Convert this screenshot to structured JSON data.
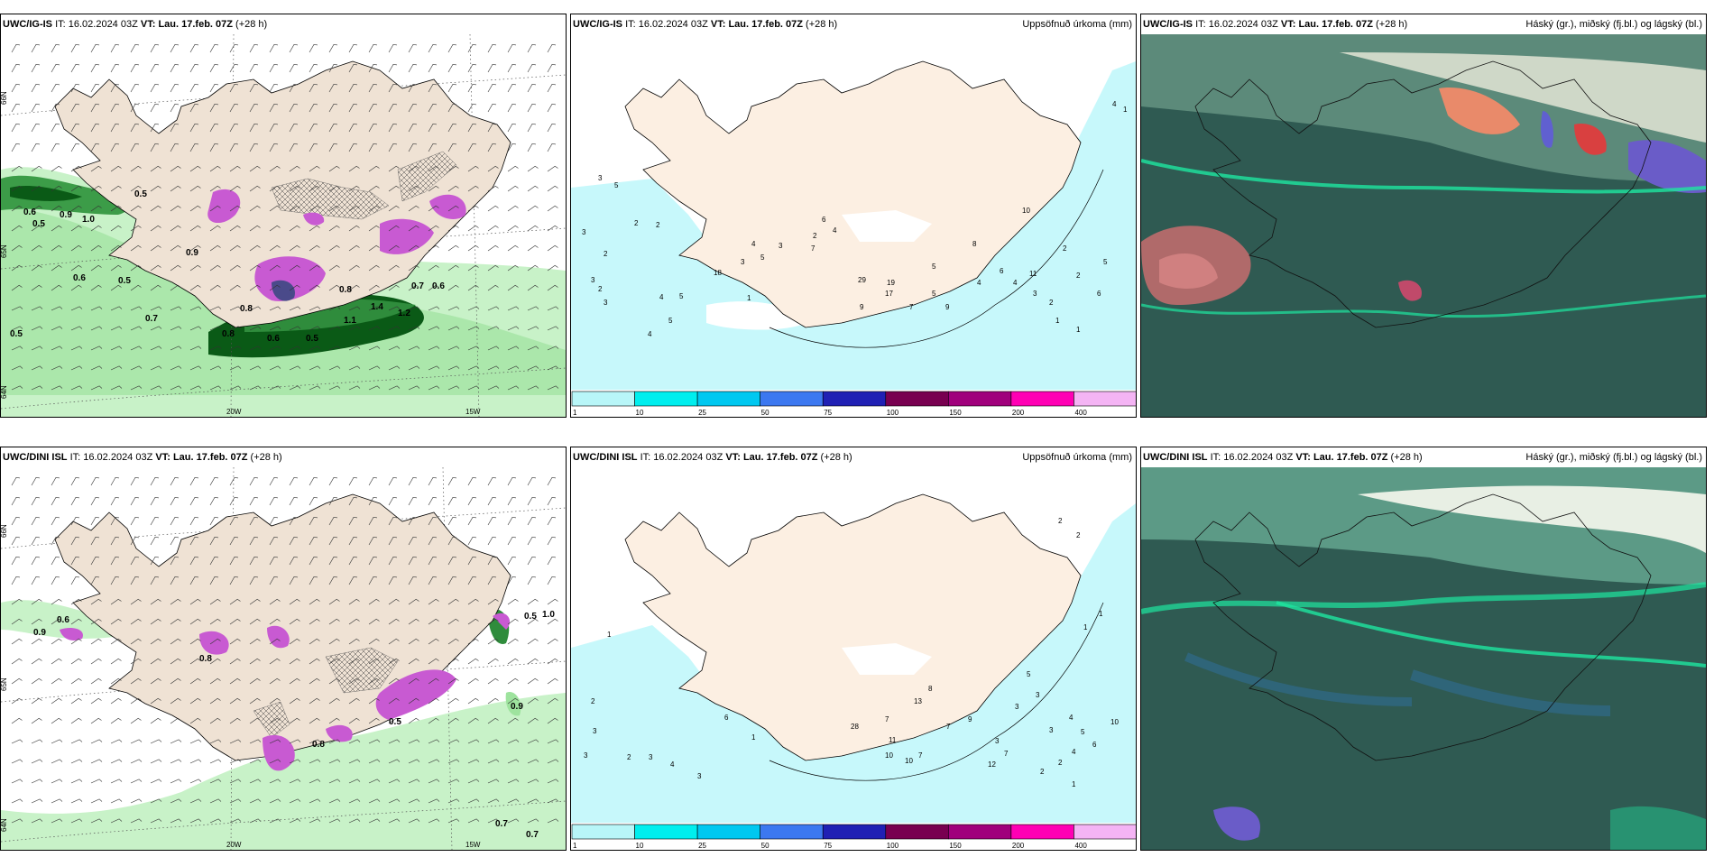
{
  "row1": {
    "p1": {
      "model": "UWC/IG-IS",
      "it_label": "IT:",
      "it": "16.02.2024 03Z",
      "vt_label": "VT:",
      "vt": "Lau. 17.feb. 07Z",
      "lead": "(+28 h)",
      "right": ""
    },
    "p2": {
      "model": "UWC/IG-IS",
      "it_label": "IT:",
      "it": "16.02.2024 03Z",
      "vt_label": "VT:",
      "vt": "Lau. 17.feb. 07Z",
      "lead": "(+28 h)",
      "right": "Uppsöfnuð úrkoma (mm)"
    },
    "p3": {
      "model": "UWC/IG-IS",
      "it_label": "IT:",
      "it": "16.02.2024 03Z",
      "vt_label": "VT:",
      "vt": "Lau. 17.feb. 07Z",
      "lead": "(+28 h)",
      "right": "Háský (gr.), miðský (fj.bl.) og lágský (bl.)"
    }
  },
  "row2": {
    "p1": {
      "model": "UWC/DINI ISL",
      "it_label": "IT:",
      "it": "16.02.2024 03Z",
      "vt_label": "VT:",
      "vt": "Lau. 17.feb. 07Z",
      "lead": "(+28 h)",
      "right": ""
    },
    "p2": {
      "model": "UWC/DINI ISL",
      "it_label": "IT:",
      "it": "16.02.2024 03Z",
      "vt_label": "VT:",
      "vt": "Lau. 17.feb. 07Z",
      "lead": "(+28 h)",
      "right": "Uppsöfnuð úrkoma (mm)"
    },
    "p3": {
      "model": "UWC/DINI ISL",
      "it_label": "IT:",
      "it": "16.02.2024 03Z",
      "vt_label": "VT:",
      "vt": "Lau. 17.feb. 07Z",
      "lead": "(+28 h)",
      "right": "Háský (gr.), miðský (fj.bl.) og lágský (bl.)"
    }
  },
  "axes": {
    "lon_20": "20W",
    "lon_15": "15W",
    "lat_66": "66N",
    "lat_65": "65N",
    "lat_64": "64N"
  },
  "colorbar": {
    "ticks": [
      "1",
      "10",
      "25",
      "50",
      "75",
      "100",
      "150",
      "200",
      "400"
    ],
    "colors": [
      "#b8f6f8",
      "#00eeee",
      "#00c8f0",
      "#3c78f0",
      "#2020b4",
      "#780050",
      "#a0007c",
      "#ff00b4",
      "#f4b4f4"
    ]
  },
  "wind_labels_top": [
    "0.6",
    "0.5",
    "0.9",
    "1.0",
    "0.5",
    "0.6",
    "0.5",
    "0.8",
    "0.7",
    "0.6",
    "1.2",
    "1.4",
    "1.1",
    "0.9",
    "0.8",
    "0.5",
    "0.5",
    "0.8",
    "0.7",
    "0.6"
  ],
  "wind_labels_bottom": [
    "0.9",
    "0.6",
    "0.5",
    "1.0",
    "0.9",
    "0.8",
    "0.5",
    "0.8",
    "0.7",
    "0.7"
  ],
  "precip_labels_top": [
    "3",
    "5",
    "3",
    "2",
    "2",
    "2",
    "3",
    "3",
    "2",
    "4",
    "5",
    "18",
    "1",
    "4",
    "5",
    "3",
    "7",
    "6",
    "4",
    "2",
    "3",
    "4",
    "5",
    "19",
    "17",
    "29",
    "9",
    "7",
    "5",
    "8",
    "9",
    "10",
    "5",
    "4",
    "6",
    "4",
    "11",
    "3",
    "2",
    "2",
    "6",
    "2",
    "5",
    "1",
    "1",
    "4",
    "1"
  ],
  "precip_labels_bottom": [
    "1",
    "2",
    "3",
    "3",
    "2",
    "3",
    "4",
    "6",
    "1",
    "3",
    "7",
    "11",
    "10",
    "10",
    "13",
    "12",
    "7",
    "8",
    "9",
    "5",
    "3",
    "3",
    "3",
    "3",
    "4",
    "5",
    "6",
    "4",
    "2",
    "2",
    "7",
    "1",
    "2",
    "2",
    "1",
    "1",
    "10",
    "7",
    "28"
  ],
  "colors": {
    "land": "#efe2d4",
    "precip_land": "#fcefe2",
    "sea_cyan": "#c7f8fb",
    "green_light": "#c8f2c8",
    "green_mid": "#4caf50",
    "green_dark": "#0a5a16",
    "magenta": "#c85ad2",
    "cloud_dark": "#2f5a52",
    "cloud_mid": "#5c8a7a",
    "cloud_bright": "#1ee6a0"
  }
}
